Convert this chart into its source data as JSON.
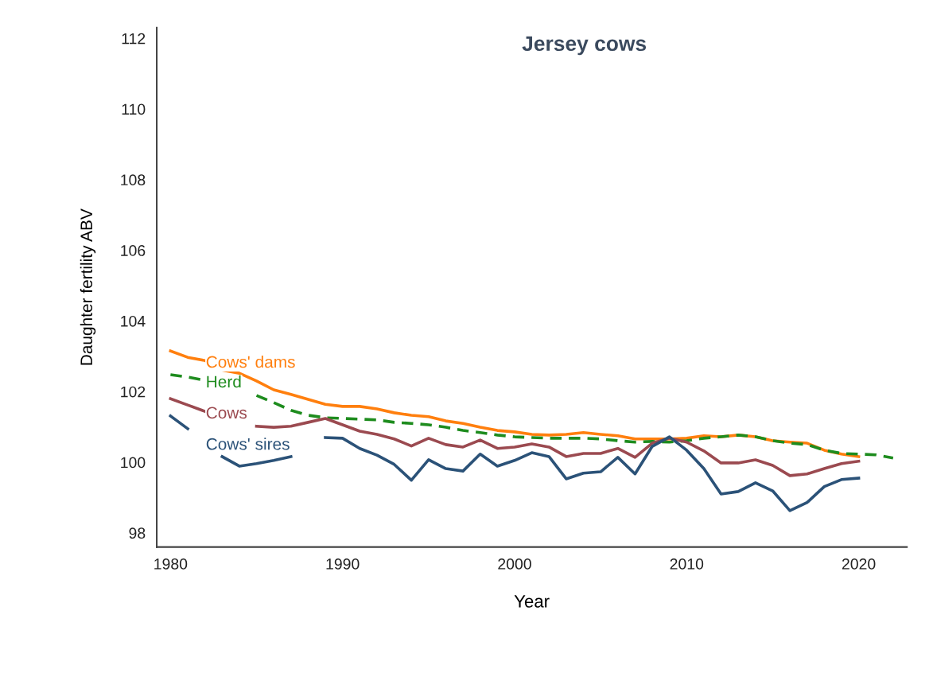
{
  "chart_data": {
    "type": "line",
    "title": "Jersey cows",
    "xlabel": "Year",
    "ylabel": "Daughter fertility ABV",
    "x": [
      1980,
      1981,
      1982,
      1983,
      1984,
      1985,
      1986,
      1987,
      1988,
      1989,
      1990,
      1991,
      1992,
      1993,
      1994,
      1995,
      1996,
      1997,
      1998,
      1999,
      2000,
      2001,
      2002,
      2003,
      2004,
      2005,
      2006,
      2007,
      2008,
      2009,
      2010,
      2011,
      2012,
      2013,
      2014,
      2015,
      2016,
      2017,
      2018,
      2019,
      2020
    ],
    "series": [
      {
        "name": "Cows' dams",
        "color": "#ff7f0e",
        "values": [
          103.15,
          102.97,
          102.88,
          102.61,
          102.52,
          102.3,
          102.05,
          101.92,
          101.78,
          101.64,
          101.58,
          101.58,
          101.51,
          101.4,
          101.33,
          101.29,
          101.17,
          101.1,
          100.99,
          100.9,
          100.86,
          100.79,
          100.77,
          100.79,
          100.84,
          100.79,
          100.75,
          100.66,
          100.66,
          100.66,
          100.68,
          100.75,
          100.72,
          100.77,
          100.72,
          100.61,
          100.57,
          100.54,
          100.34,
          100.23,
          100.16
        ]
      },
      {
        "name": "Herd",
        "color": "#1e8c1e",
        "line_style": "dashed",
        "x": [
          1980,
          1981,
          1982,
          1983,
          1984,
          1985,
          1986,
          1987,
          1988,
          1989,
          1990,
          1991,
          1992,
          1993,
          1994,
          1995,
          1996,
          1997,
          1998,
          1999,
          2000,
          2001,
          2002,
          2003,
          2004,
          2005,
          2006,
          2007,
          2008,
          2009,
          2010,
          2011,
          2012,
          2013,
          2014,
          2015,
          2016,
          2017,
          2018,
          2019,
          2020,
          2021,
          2022
        ],
        "values": [
          102.48,
          102.41,
          102.32,
          null,
          null,
          101.89,
          101.69,
          101.47,
          101.33,
          101.26,
          101.24,
          101.22,
          101.2,
          101.13,
          101.1,
          101.06,
          100.99,
          100.9,
          100.84,
          100.77,
          100.72,
          100.7,
          100.68,
          100.68,
          100.68,
          100.66,
          100.61,
          100.57,
          100.59,
          100.57,
          100.61,
          100.68,
          100.72,
          100.77,
          100.72,
          100.61,
          100.54,
          100.5,
          100.34,
          100.25,
          100.23,
          100.21,
          100.12
        ]
      },
      {
        "name": "Cows",
        "color": "#9b4a50",
        "values": [
          101.8,
          101.62,
          101.44,
          null,
          null,
          101.02,
          100.99,
          101.02,
          101.13,
          101.24,
          101.06,
          100.88,
          100.79,
          100.66,
          100.46,
          100.68,
          100.5,
          100.43,
          100.63,
          100.39,
          100.43,
          100.52,
          100.43,
          100.16,
          100.25,
          100.25,
          100.39,
          100.14,
          100.54,
          100.68,
          100.57,
          100.32,
          99.98,
          99.98,
          100.07,
          99.91,
          99.62,
          99.67,
          99.82,
          99.96,
          100.03
        ]
      },
      {
        "name": "Cows' sires",
        "color": "#2b5278",
        "values": [
          101.31,
          100.95,
          null,
          100.16,
          99.89,
          99.96,
          100.05,
          100.16,
          null,
          100.7,
          100.68,
          100.39,
          100.2,
          99.94,
          99.49,
          100.07,
          99.82,
          99.75,
          100.23,
          99.89,
          100.05,
          100.27,
          100.16,
          99.53,
          99.69,
          99.73,
          100.14,
          99.67,
          100.45,
          100.72,
          100.34,
          99.82,
          99.1,
          99.17,
          99.42,
          99.19,
          98.63,
          98.86,
          99.31,
          99.51,
          99.55
        ]
      }
    ],
    "xlim": [
      1979.2,
      2022.8
    ],
    "xticks": [
      1980,
      1990,
      2000,
      2010,
      2020
    ],
    "ylim": [
      97.6,
      112.3
    ],
    "yticks": [
      98,
      100,
      102,
      104,
      106,
      108,
      110,
      112
    ],
    "grid": false,
    "legend": false,
    "line_style": "solid",
    "marker": "none"
  }
}
